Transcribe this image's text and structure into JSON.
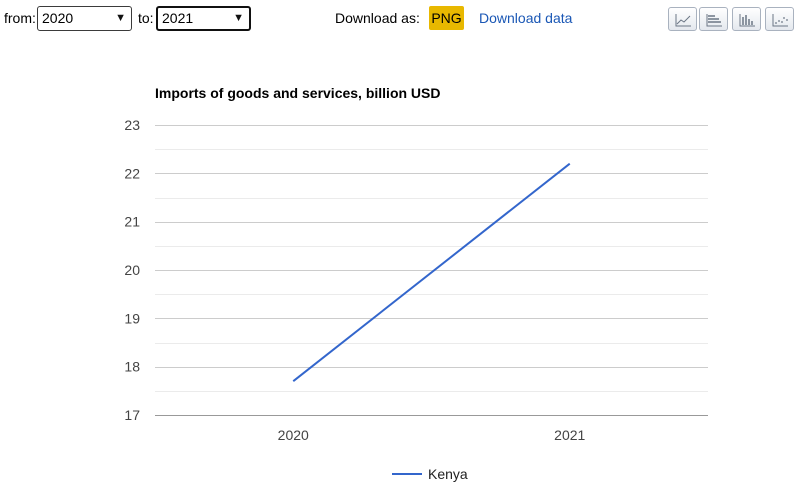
{
  "toolbar": {
    "from_label": "from:",
    "from_value": "2020",
    "to_label": "to:",
    "to_value": "2021",
    "download_label": "Download as:",
    "png_label": "PNG",
    "download_data_label": "Download data",
    "chart_type_icons": [
      "line-chart-icon",
      "horizontal-bar-chart-icon",
      "column-chart-icon",
      "scatter-chart-icon"
    ]
  },
  "colors": {
    "series": "#3366cc",
    "png_button": "#e8b800",
    "link": "#1a57b5",
    "grid": "#cccccc"
  },
  "chart_data": {
    "type": "line",
    "title": "Imports of goods and services, billion USD",
    "x": [
      "2020",
      "2021"
    ],
    "series": [
      {
        "name": "Kenya",
        "values": [
          17.7,
          22.2
        ]
      }
    ],
    "ylim": [
      17,
      23
    ],
    "yticks": [
      17,
      18,
      19,
      20,
      21,
      22,
      23
    ],
    "grid": true,
    "legend_position": "bottom"
  }
}
